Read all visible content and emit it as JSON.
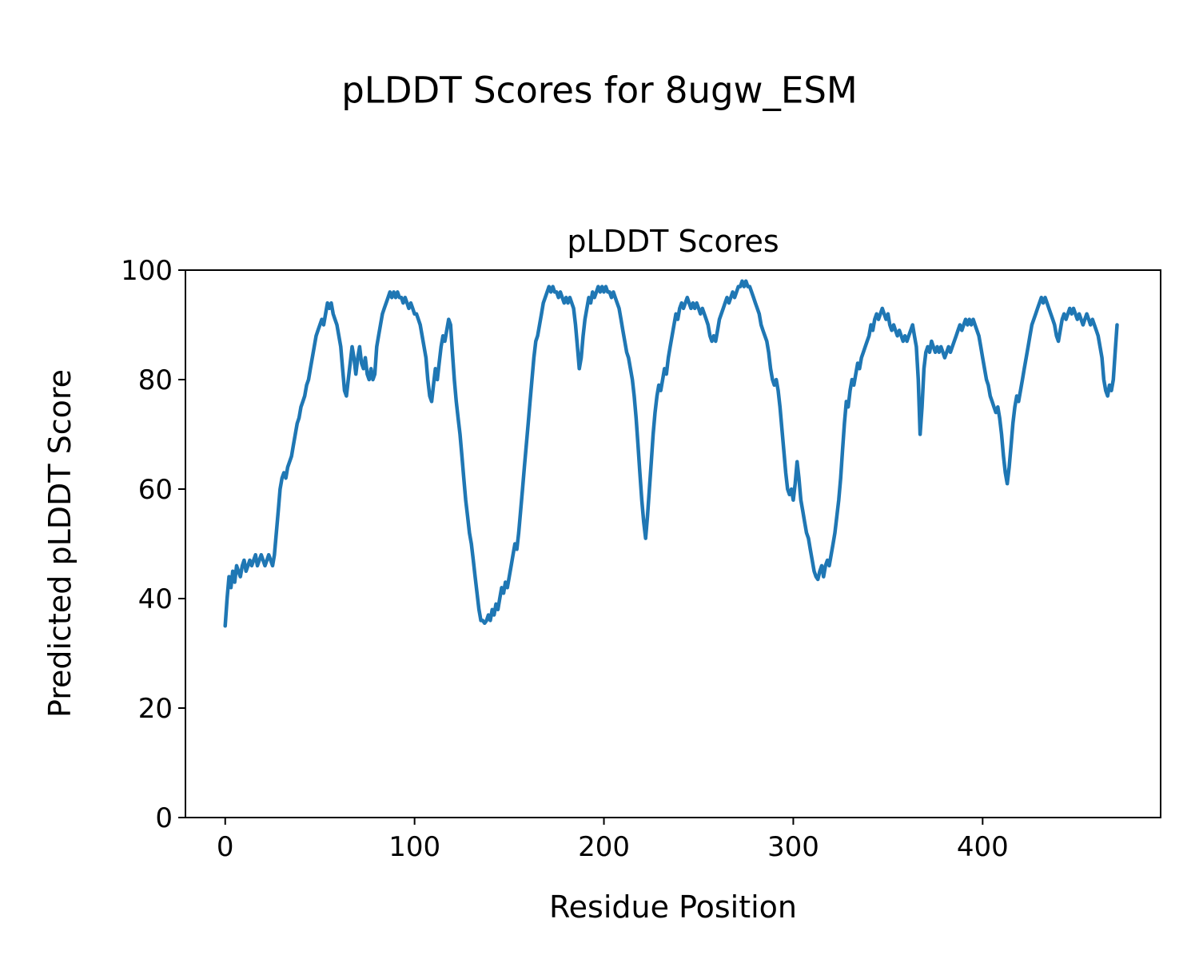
{
  "chart_data": {
    "type": "line",
    "suptitle": "pLDDT Scores for 8ugw_ESM",
    "title": "pLDDT Scores",
    "xlabel": "Residue Position",
    "ylabel": "Predicted pLDDT Score",
    "xlim": [
      -21,
      494
    ],
    "ylim": [
      0,
      100
    ],
    "xticks": [
      0,
      100,
      200,
      300,
      400
    ],
    "yticks": [
      0,
      20,
      40,
      60,
      80,
      100
    ],
    "grid": false,
    "legend": "none",
    "line_color": "#1f77b4",
    "line_width": 4.5,
    "series": [
      {
        "name": "pLDDT",
        "x_start": 0,
        "x_step": 1,
        "values": [
          35,
          40,
          44,
          42,
          45,
          43,
          46,
          45,
          44,
          46,
          47,
          45,
          46,
          47,
          46,
          47,
          48,
          46,
          47,
          48,
          47,
          46,
          47,
          48,
          47,
          46,
          48,
          52,
          56,
          60,
          62,
          63,
          62,
          64,
          65,
          66,
          68,
          70,
          72,
          73,
          75,
          76,
          77,
          79,
          80,
          82,
          84,
          86,
          88,
          89,
          90,
          91,
          90,
          92,
          94,
          93,
          94,
          92,
          91,
          90,
          88,
          86,
          82,
          78,
          77,
          80,
          83,
          86,
          84,
          81,
          84,
          86,
          83,
          82,
          84,
          81,
          80,
          82,
          80,
          81,
          86,
          88,
          90,
          92,
          93,
          94,
          95,
          96,
          95,
          96,
          95,
          96,
          95,
          95,
          94,
          95,
          94,
          93,
          94,
          93,
          92,
          92,
          91,
          90,
          88,
          86,
          84,
          80,
          77,
          76,
          79,
          82,
          80,
          83,
          86,
          88,
          87,
          89,
          91,
          90,
          85,
          80,
          76,
          73,
          70,
          66,
          62,
          58,
          55,
          52,
          50,
          47,
          44,
          41,
          38,
          36,
          36,
          35.5,
          36,
          37,
          36,
          38,
          37,
          39,
          38,
          40,
          42,
          41,
          43,
          42,
          44,
          46,
          48,
          50,
          49,
          52,
          56,
          60,
          64,
          68,
          72,
          76,
          80,
          84,
          87,
          88,
          90,
          92,
          94,
          95,
          96,
          97,
          96,
          97,
          96,
          96,
          95,
          96,
          95,
          94,
          95,
          94,
          95,
          94,
          93,
          90,
          86,
          82,
          84,
          88,
          91,
          93,
          95,
          94,
          96,
          95,
          96,
          97,
          96,
          97,
          96,
          97,
          96,
          96,
          95,
          96,
          95,
          94,
          93,
          91,
          89,
          87,
          85,
          84,
          82,
          80,
          77,
          73,
          68,
          63,
          58,
          54,
          51,
          55,
          60,
          65,
          70,
          74,
          77,
          79,
          78,
          80,
          82,
          81,
          84,
          86,
          88,
          90,
          92,
          91,
          93,
          94,
          93,
          94,
          95,
          94,
          93,
          94,
          93,
          94,
          93,
          92,
          93,
          92,
          91,
          90,
          88,
          87,
          88,
          87,
          89,
          91,
          92,
          93,
          94,
          95,
          94,
          95,
          96,
          95,
          96,
          97,
          97,
          98,
          97,
          98,
          97,
          97,
          96,
          95,
          94,
          93,
          92,
          90,
          89,
          88,
          87,
          85,
          82,
          80,
          79,
          80,
          78,
          75,
          71,
          67,
          63,
          60,
          59,
          60,
          58,
          61,
          65,
          62,
          58,
          56,
          54,
          52,
          51,
          49,
          47,
          45,
          44,
          43.5,
          45,
          46,
          44,
          46,
          47,
          46,
          48,
          50,
          52,
          55,
          58,
          62,
          67,
          72,
          76,
          75,
          78,
          80,
          79,
          81,
          83,
          82,
          84,
          85,
          86,
          87,
          88,
          90,
          89,
          91,
          92,
          91,
          92,
          93,
          92,
          91,
          92,
          90,
          89,
          90,
          89,
          88,
          89,
          88,
          87,
          88,
          87,
          88,
          89,
          90,
          88,
          86,
          80,
          70,
          75,
          82,
          85,
          86,
          85,
          87,
          86,
          85,
          86,
          85,
          86,
          85,
          84,
          85,
          86,
          85,
          86,
          87,
          88,
          89,
          90,
          89,
          90,
          91,
          90,
          91,
          90,
          91,
          90,
          89,
          88,
          86,
          84,
          82,
          80,
          79,
          77,
          76,
          75,
          74,
          75,
          73,
          70,
          66,
          63,
          61,
          64,
          68,
          72,
          75,
          77,
          76,
          78,
          80,
          82,
          84,
          86,
          88,
          90,
          91,
          92,
          93,
          94,
          95,
          94,
          95,
          94,
          93,
          92,
          91,
          90,
          88,
          87,
          89,
          91,
          92,
          91,
          92,
          93,
          92,
          93,
          92,
          91,
          92,
          91,
          90,
          91,
          92,
          91,
          90,
          91,
          90,
          89,
          88,
          86,
          84,
          80,
          78,
          77,
          79,
          78,
          80,
          85,
          90
        ]
      }
    ]
  }
}
